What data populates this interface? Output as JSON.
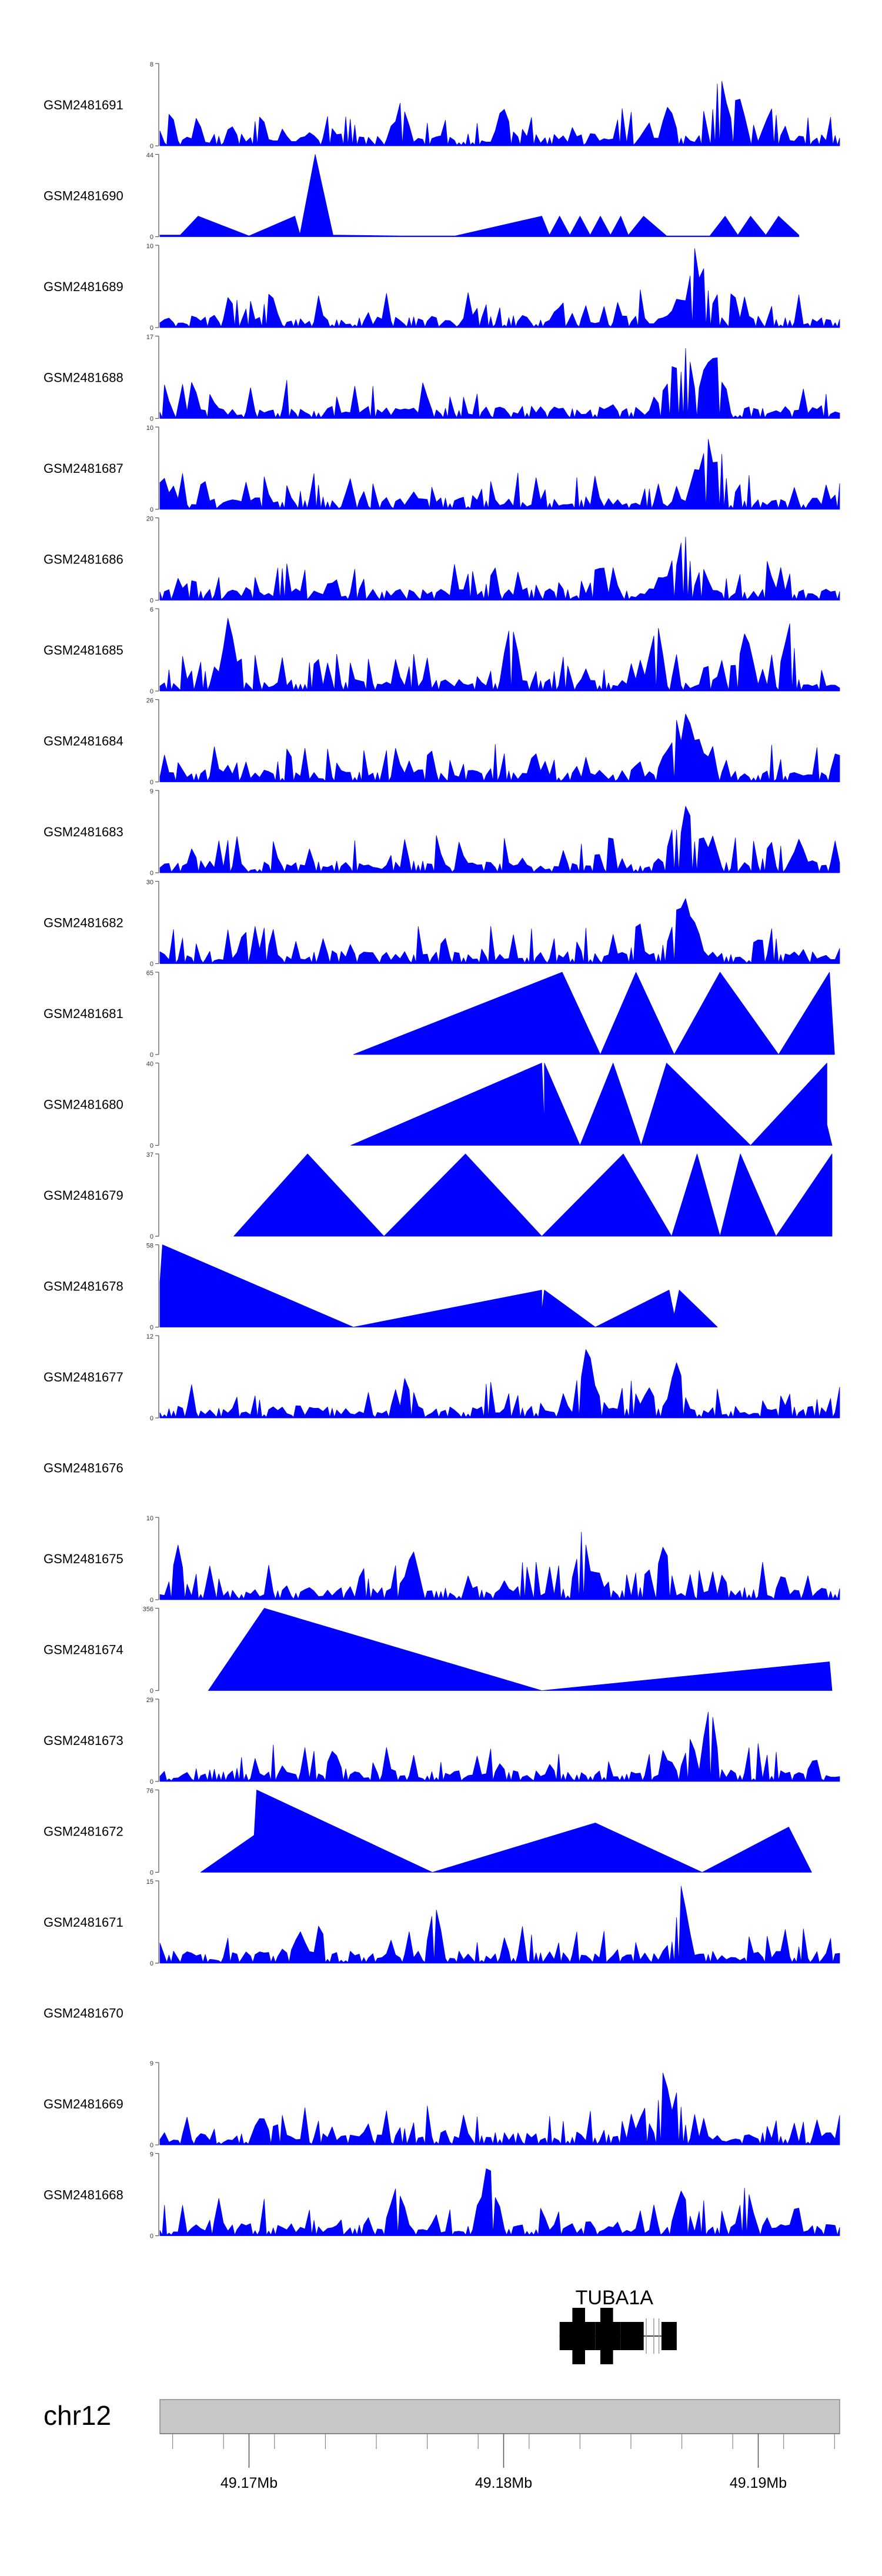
{
  "chart_data": {
    "type": "area",
    "title": "",
    "xlabel": "",
    "ylabel": "",
    "chromosome": "chr12",
    "xlim": [
      49.1665,
      49.1932
    ],
    "x_unit": "Mb",
    "ticks": [
      {
        "value": 49.17,
        "label": "49.17Mb"
      },
      {
        "value": 49.18,
        "label": "49.18Mb"
      },
      {
        "value": 49.19,
        "label": "49.19Mb"
      }
    ],
    "minor_ticks": [
      49.167,
      49.169,
      49.171,
      49.173,
      49.175,
      49.177,
      49.179,
      49.181,
      49.183,
      49.185,
      49.187,
      49.189,
      49.191,
      49.193
    ],
    "gene": {
      "name": "TUBA1A",
      "start": 49.1822,
      "end": 49.1865,
      "exons": [
        {
          "start": 49.1822,
          "end": 49.1836,
          "size": "mid"
        },
        {
          "start": 49.1827,
          "end": 49.1832,
          "size": "tall"
        },
        {
          "start": 49.1836,
          "end": 49.1846,
          "size": "mid"
        },
        {
          "start": 49.1838,
          "end": 49.1843,
          "size": "tall"
        },
        {
          "start": 49.1846,
          "end": 49.1855,
          "size": "mid"
        },
        {
          "start": 49.1862,
          "end": 49.1868,
          "size": "mid"
        }
      ],
      "utrs": [
        49.1856,
        49.1859,
        49.1861
      ]
    },
    "series": [
      {
        "name": "GSM2481691",
        "ymax": 8,
        "ymax_label": "8",
        "ymin_label": "0",
        "style": "dense",
        "peaks": [
          {
            "x": 49.1885,
            "h": 1.0
          },
          {
            "x": 49.1905,
            "h": 0.5
          },
          {
            "x": 49.1865,
            "h": 0.55
          },
          {
            "x": 49.1892,
            "h": 0.75
          },
          {
            "x": 49.176,
            "h": 0.6
          },
          {
            "x": 49.18,
            "h": 0.55
          }
        ],
        "seed": 11
      },
      {
        "name": "GSM2481690",
        "ymax": 44,
        "ymax_label": "44",
        "ymin_label": "0",
        "style": "sparse",
        "points": [
          [
            49.1665,
            0.02
          ],
          [
            49.1673,
            0.02
          ],
          [
            49.168,
            0.25
          ],
          [
            49.17,
            0.01
          ],
          [
            49.1718,
            0.25
          ],
          [
            49.172,
            0.03
          ],
          [
            49.1726,
            1.0
          ],
          [
            49.1733,
            0.02
          ],
          [
            49.176,
            0.01
          ],
          [
            49.1781,
            0.01
          ],
          [
            49.1815,
            0.25
          ],
          [
            49.1818,
            0.02
          ],
          [
            49.1822,
            0.25
          ],
          [
            49.1826,
            0.02
          ],
          [
            49.183,
            0.25
          ],
          [
            49.1834,
            0.02
          ],
          [
            49.1838,
            0.25
          ],
          [
            49.1842,
            0.02
          ],
          [
            49.1846,
            0.25
          ],
          [
            49.1849,
            0.02
          ],
          [
            49.1855,
            0.25
          ],
          [
            49.1864,
            0.01
          ],
          [
            49.1881,
            0.01
          ],
          [
            49.1887,
            0.25
          ],
          [
            49.1892,
            0.02
          ],
          [
            49.1897,
            0.25
          ],
          [
            49.1903,
            0.02
          ],
          [
            49.1908,
            0.25
          ],
          [
            49.1916,
            0.02
          ]
        ]
      },
      {
        "name": "GSM2481689",
        "ymax": 10,
        "ymax_label": "10",
        "ymin_label": "0",
        "style": "dense",
        "peaks": [
          {
            "x": 49.1875,
            "h": 1.0
          },
          {
            "x": 49.1878,
            "h": 0.85
          },
          {
            "x": 49.1869,
            "h": 0.45
          },
          {
            "x": 49.1708,
            "h": 0.5
          },
          {
            "x": 49.188,
            "h": 0.5
          }
        ],
        "seed": 23
      },
      {
        "name": "GSM2481688",
        "ymax": 17,
        "ymax_label": "17",
        "ymin_label": "0",
        "style": "dense",
        "peaks": [
          {
            "x": 49.1867,
            "h": 0.85
          },
          {
            "x": 49.1872,
            "h": 1.0
          },
          {
            "x": 49.1883,
            "h": 0.95
          },
          {
            "x": 49.188,
            "h": 0.8
          },
          {
            "x": 49.1864,
            "h": 0.5
          }
        ],
        "seed": 31
      },
      {
        "name": "GSM2481687",
        "ymax": 10,
        "ymax_label": "10",
        "ymin_label": "0",
        "style": "dense",
        "peaks": [
          {
            "x": 49.188,
            "h": 1.0
          },
          {
            "x": 49.1885,
            "h": 0.8
          },
          {
            "x": 49.1876,
            "h": 0.6
          },
          {
            "x": 49.1666,
            "h": 0.45
          }
        ],
        "seed": 43
      },
      {
        "name": "GSM2481686",
        "ymax": 20,
        "ymax_label": "20",
        "ymin_label": "0",
        "style": "dense",
        "peaks": [
          {
            "x": 49.1871,
            "h": 0.95
          },
          {
            "x": 49.1867,
            "h": 0.6
          },
          {
            "x": 49.1878,
            "h": 0.45
          },
          {
            "x": 49.1862,
            "h": 0.35
          }
        ],
        "seed": 53
      },
      {
        "name": "GSM2481685",
        "ymax": 6,
        "ymax_label": "6",
        "ymin_label": "0",
        "style": "dense",
        "peaks": [
          {
            "x": 49.1692,
            "h": 0.95
          },
          {
            "x": 49.1803,
            "h": 0.95
          },
          {
            "x": 49.186,
            "h": 0.95
          },
          {
            "x": 49.1912,
            "h": 0.9
          },
          {
            "x": 49.1895,
            "h": 0.85
          }
        ],
        "seed": 61
      },
      {
        "name": "GSM2481684",
        "ymax": 26,
        "ymax_label": "26",
        "ymin_label": "0",
        "style": "dense",
        "peaks": [
          {
            "x": 49.1872,
            "h": 0.95
          },
          {
            "x": 49.1868,
            "h": 0.8
          },
          {
            "x": 49.1876,
            "h": 0.65
          },
          {
            "x": 49.1864,
            "h": 0.45
          },
          {
            "x": 49.188,
            "h": 0.35
          }
        ],
        "seed": 71
      },
      {
        "name": "GSM2481683",
        "ymax": 9,
        "ymax_label": "9",
        "ymin_label": "0",
        "style": "dense",
        "peaks": [
          {
            "x": 49.1872,
            "h": 1.0
          },
          {
            "x": 49.1867,
            "h": 0.7
          },
          {
            "x": 49.1878,
            "h": 0.55
          },
          {
            "x": 49.1916,
            "h": 0.45
          }
        ],
        "seed": 83
      },
      {
        "name": "GSM2481682",
        "ymax": 30,
        "ymax_label": "30",
        "ymin_label": "0",
        "style": "dense",
        "peaks": [
          {
            "x": 49.1871,
            "h": 1.0
          },
          {
            "x": 49.1868,
            "h": 0.75
          },
          {
            "x": 49.1875,
            "h": 0.55
          },
          {
            "x": 49.1864,
            "h": 0.3
          }
        ],
        "seed": 97
      },
      {
        "name": "GSM2481681",
        "ymax": 65,
        "ymax_label": "65",
        "ymin_label": "0",
        "style": "sparse",
        "points": [
          [
            49.1741,
            0.0
          ],
          [
            49.1823,
            1.0
          ],
          [
            49.1838,
            0.0
          ],
          [
            49.1852,
            1.0
          ],
          [
            49.1867,
            0.0
          ],
          [
            49.1885,
            1.0
          ],
          [
            49.1908,
            0.0
          ],
          [
            49.1928,
            1.0
          ],
          [
            49.193,
            0.0
          ]
        ]
      },
      {
        "name": "GSM2481680",
        "ymax": 40,
        "ymax_label": "40",
        "ymin_label": "0",
        "style": "sparse",
        "points": [
          [
            49.174,
            0.0
          ],
          [
            49.1815,
            1.0
          ],
          [
            49.1816,
            0.25
          ],
          [
            49.1816,
            1.0
          ],
          [
            49.183,
            0.0
          ],
          [
            49.1843,
            1.0
          ],
          [
            49.1854,
            0.0
          ],
          [
            49.1864,
            1.0
          ],
          [
            49.1897,
            0.0
          ],
          [
            49.1927,
            1.0
          ],
          [
            49.1927,
            0.25
          ],
          [
            49.1929,
            0.0
          ]
        ]
      },
      {
        "name": "GSM2481679",
        "ymax": 37,
        "ymax_label": "37",
        "ymin_label": "0",
        "style": "sparse",
        "points": [
          [
            49.1694,
            0.0
          ],
          [
            49.1723,
            1.0
          ],
          [
            49.1753,
            0.0
          ],
          [
            49.1785,
            1.0
          ],
          [
            49.1815,
            0.0
          ],
          [
            49.1847,
            1.0
          ],
          [
            49.1866,
            0.0
          ],
          [
            49.1876,
            1.0
          ],
          [
            49.1885,
            0.0
          ],
          [
            49.1893,
            1.0
          ],
          [
            49.1907,
            0.0
          ],
          [
            49.1929,
            1.0
          ],
          [
            49.1929,
            0.0
          ]
        ]
      },
      {
        "name": "GSM2481678",
        "ymax": 58,
        "ymax_label": "58",
        "ymin_label": "0",
        "style": "sparse",
        "points": [
          [
            49.1665,
            0.55
          ],
          [
            49.1666,
            1.0
          ],
          [
            49.1741,
            0.0
          ],
          [
            49.1815,
            0.45
          ],
          [
            49.1815,
            0.2
          ],
          [
            49.1816,
            0.45
          ],
          [
            49.1836,
            0.0
          ],
          [
            49.1865,
            0.45
          ],
          [
            49.1867,
            0.15
          ],
          [
            49.1869,
            0.45
          ],
          [
            49.1884,
            0.0
          ]
        ]
      },
      {
        "name": "GSM2481677",
        "ymax": 12,
        "ymax_label": "12",
        "ymin_label": "0",
        "style": "dense",
        "peaks": [
          {
            "x": 49.1833,
            "h": 1.0
          },
          {
            "x": 49.1868,
            "h": 0.8
          },
          {
            "x": 49.1857,
            "h": 0.45
          },
          {
            "x": 49.1838,
            "h": 0.3
          }
        ],
        "seed": 107
      },
      {
        "name": "GSM2481676",
        "ymax": 0,
        "ymax_label": "",
        "ymin_label": "",
        "style": "empty"
      },
      {
        "name": "GSM2481675",
        "ymax": 10,
        "ymax_label": "10",
        "ymin_label": "0",
        "style": "dense",
        "peaks": [
          {
            "x": 49.1831,
            "h": 0.95
          },
          {
            "x": 49.1863,
            "h": 0.75
          },
          {
            "x": 49.1672,
            "h": 0.7
          },
          {
            "x": 49.1764,
            "h": 0.7
          }
        ],
        "seed": 113
      },
      {
        "name": "GSM2481674",
        "ymax": 356,
        "ymax_label": "356",
        "ymin_label": "0",
        "style": "sparse",
        "points": [
          [
            49.1684,
            0.0
          ],
          [
            49.1706,
            1.0
          ],
          [
            49.1815,
            0.0
          ],
          [
            49.1928,
            0.35
          ],
          [
            49.1929,
            0.0
          ]
        ]
      },
      {
        "name": "GSM2481673",
        "ymax": 29,
        "ymax_label": "29",
        "ymin_label": "0",
        "style": "dense",
        "peaks": [
          {
            "x": 49.1881,
            "h": 1.0
          },
          {
            "x": 49.1873,
            "h": 0.55
          },
          {
            "x": 49.1733,
            "h": 0.45
          },
          {
            "x": 49.1865,
            "h": 0.3
          }
        ],
        "seed": 127
      },
      {
        "name": "GSM2481672",
        "ymax": 76,
        "ymax_label": "76",
        "ymin_label": "0",
        "style": "sparse",
        "points": [
          [
            49.1681,
            0.0
          ],
          [
            49.1702,
            0.45
          ],
          [
            49.1703,
            1.0
          ],
          [
            49.1772,
            0.0
          ],
          [
            49.1836,
            0.6
          ],
          [
            49.1878,
            0.0
          ],
          [
            49.1912,
            0.55
          ],
          [
            49.1921,
            0.0
          ]
        ]
      },
      {
        "name": "GSM2481671",
        "ymax": 15,
        "ymax_label": "15",
        "ymin_label": "0",
        "style": "dense",
        "peaks": [
          {
            "x": 49.187,
            "h": 1.0
          },
          {
            "x": 49.1773,
            "h": 0.75
          },
          {
            "x": 49.172,
            "h": 0.45
          }
        ],
        "seed": 131
      },
      {
        "name": "GSM2481670",
        "ymax": 0,
        "ymax_label": "",
        "ymin_label": "",
        "style": "empty"
      },
      {
        "name": "GSM2481669",
        "ymax": 9,
        "ymax_label": "9",
        "ymin_label": "0",
        "style": "dense",
        "peaks": [
          {
            "x": 49.1863,
            "h": 1.0
          },
          {
            "x": 49.1868,
            "h": 0.7
          },
          {
            "x": 49.1855,
            "h": 0.5
          },
          {
            "x": 49.1705,
            "h": 0.4
          }
        ],
        "seed": 139
      },
      {
        "name": "GSM2481668",
        "ymax": 9,
        "ymax_label": "9",
        "ymin_label": "0",
        "style": "dense",
        "peaks": [
          {
            "x": 49.1794,
            "h": 1.0
          },
          {
            "x": 49.1758,
            "h": 0.7
          },
          {
            "x": 49.187,
            "h": 0.65
          },
          {
            "x": 49.1895,
            "h": 0.7
          }
        ],
        "seed": 149
      }
    ]
  }
}
